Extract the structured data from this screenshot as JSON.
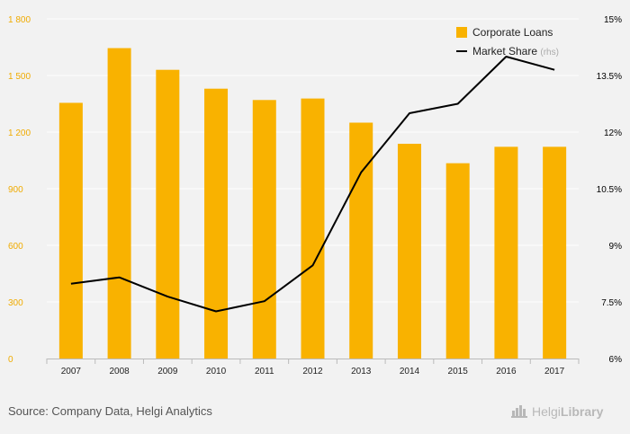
{
  "chart_data": {
    "type": "bar",
    "categories": [
      "2007",
      "2008",
      "2009",
      "2010",
      "2011",
      "2012",
      "2013",
      "2014",
      "2015",
      "2016",
      "2017"
    ],
    "series": [
      {
        "name": "Corporate Loans",
        "type": "bar",
        "axis": "left",
        "values": [
          1355,
          1645,
          1530,
          1430,
          1370,
          1378,
          1250,
          1138,
          1035,
          1122,
          1122
        ]
      },
      {
        "name": "Market Share",
        "type": "line",
        "axis": "right",
        "values": [
          7.98,
          8.15,
          7.64,
          7.25,
          7.52,
          8.47,
          10.93,
          12.5,
          12.75,
          14.0,
          13.65
        ]
      }
    ],
    "left_axis": {
      "min": 0,
      "max": 1800,
      "ticks": [
        0,
        300,
        600,
        900,
        1200,
        1500,
        1800
      ],
      "tick_labels": [
        "0",
        "300",
        "600",
        "900",
        "1 200",
        "1 500",
        "1 800"
      ]
    },
    "right_axis": {
      "min": 6,
      "max": 15,
      "ticks": [
        6,
        7.5,
        9,
        10.5,
        12,
        13.5,
        15
      ],
      "tick_labels": [
        "6%",
        "7.5%",
        "9%",
        "10.5%",
        "12%",
        "13.5%",
        "15%"
      ]
    },
    "legend": {
      "position": "top-right",
      "items": [
        {
          "label": "Corporate Loans",
          "suffix": ""
        },
        {
          "label": "Market Share",
          "suffix": "(rhs)"
        }
      ]
    },
    "grid": true,
    "colors": {
      "bar": "#f9b200",
      "line": "#000000",
      "left_tick": "#f0ab00",
      "grid": "#ffffff",
      "background": "#f2f2f2"
    }
  },
  "footer": {
    "source": "Source: Company Data, Helgi Analytics",
    "brand_regular": "Helgi",
    "brand_bold": "Library",
    "brand_icon": "building-icon"
  }
}
